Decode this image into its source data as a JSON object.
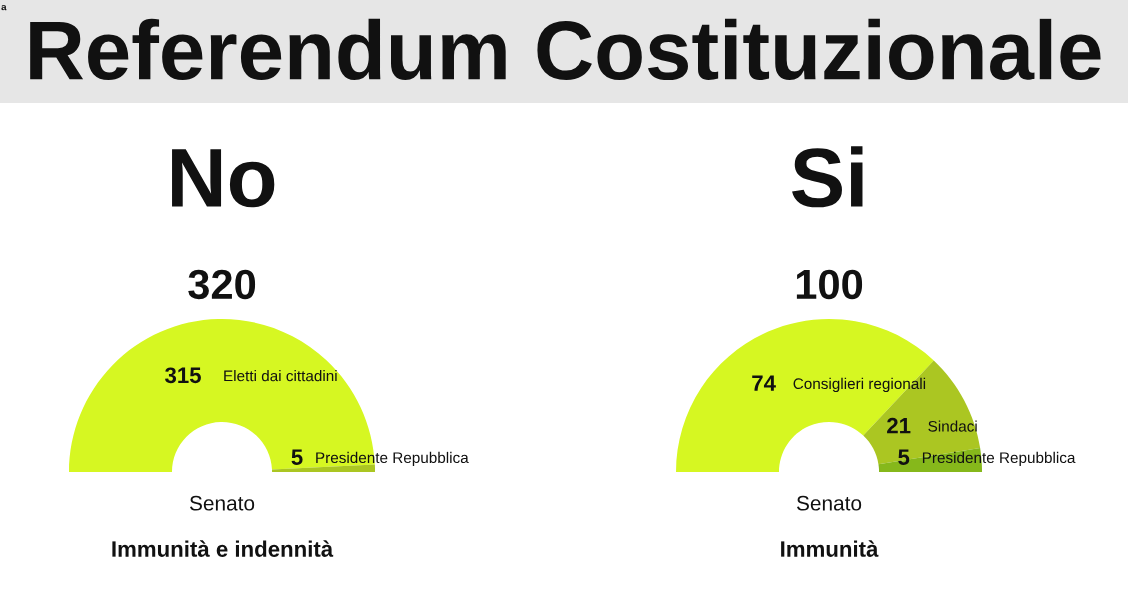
{
  "chart_data": [
    {
      "type": "other",
      "title": "Referendum Costituzionale",
      "annotations": [
        "a"
      ]
    },
    {
      "type": "donut",
      "title": "No",
      "categories": [
        "Eletti dai cittadini",
        "Presidente Repubblica"
      ],
      "values": [
        315,
        5
      ],
      "colors": [
        "#d6f722",
        "#abc622"
      ],
      "data_labels": true,
      "totals": [
        "320"
      ],
      "annotations": [
        "Senato",
        "Immunità e indennità"
      ]
    },
    {
      "type": "donut",
      "title": "Si",
      "categories": [
        "Consiglieri regionali",
        "Sindaci",
        "Presidente Repubblica"
      ],
      "values": [
        74,
        21,
        5
      ],
      "colors": [
        "#d6f722",
        "#abc622",
        "#86b81b"
      ],
      "data_labels": true,
      "totals": [
        "100"
      ],
      "annotations": [
        "Senato",
        "Immunità"
      ]
    }
  ]
}
